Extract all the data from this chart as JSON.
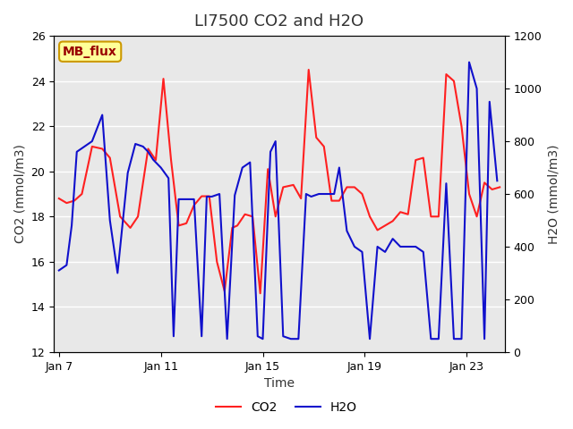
{
  "title": "LI7500 CO2 and H2O",
  "xlabel": "Time",
  "ylabel_left": "CO2 (mmol/m3)",
  "ylabel_right": "H2O (mmol/m3)",
  "ylim_left": [
    12,
    26
  ],
  "ylim_right": [
    0,
    1200
  ],
  "background_color": "#ffffff",
  "plot_bg_color": "#e8e8e8",
  "annotation_text": "MB_flux",
  "annotation_bg": "#ffff99",
  "annotation_border": "#cc9900",
  "annotation_text_color": "#990000",
  "co2_color": "#ff2020",
  "h2o_color": "#1010cc",
  "legend_co2": "CO2",
  "legend_h2o": "H2O",
  "co2_x": [
    7.0,
    7.3,
    7.6,
    7.9,
    8.3,
    8.7,
    9.0,
    9.4,
    9.8,
    10.1,
    10.5,
    10.8,
    11.1,
    11.4,
    11.7,
    12.0,
    12.3,
    12.6,
    12.9,
    13.2,
    13.5,
    13.8,
    14.0,
    14.3,
    14.6,
    14.9,
    15.2,
    15.5,
    15.8,
    16.2,
    16.5,
    16.8,
    17.1,
    17.4,
    17.7,
    18.0,
    18.3,
    18.6,
    18.9,
    19.2,
    19.5,
    19.8,
    20.1,
    20.4,
    20.7,
    21.0,
    21.3,
    21.6,
    21.9,
    22.2,
    22.5,
    22.8,
    23.1,
    23.4,
    23.7,
    24.0,
    24.3
  ],
  "co2_y": [
    18.8,
    18.6,
    18.7,
    19.0,
    21.1,
    21.0,
    20.6,
    18.0,
    17.5,
    18.0,
    21.0,
    20.5,
    24.1,
    20.5,
    17.6,
    17.7,
    18.5,
    18.9,
    18.9,
    16.0,
    14.7,
    17.5,
    17.6,
    18.1,
    18.0,
    14.6,
    20.1,
    18.0,
    19.3,
    19.4,
    18.8,
    24.5,
    21.5,
    21.1,
    18.7,
    18.7,
    19.3,
    19.3,
    19.0,
    18.0,
    17.4,
    17.6,
    17.8,
    18.2,
    18.1,
    20.5,
    20.6,
    18.0,
    18.0,
    24.3,
    24.0,
    22.0,
    19.0,
    18.0,
    19.5,
    19.2,
    19.3
  ],
  "h2o_x": [
    7.0,
    7.3,
    7.5,
    7.7,
    8.0,
    8.3,
    8.7,
    9.0,
    9.3,
    9.7,
    10.0,
    10.3,
    10.5,
    10.7,
    11.0,
    11.3,
    11.5,
    11.7,
    12.0,
    12.3,
    12.6,
    12.8,
    13.0,
    13.3,
    13.6,
    13.9,
    14.2,
    14.5,
    14.8,
    15.0,
    15.3,
    15.5,
    15.8,
    16.1,
    16.4,
    16.7,
    16.9,
    17.2,
    17.5,
    17.8,
    18.0,
    18.3,
    18.6,
    18.9,
    19.2,
    19.5,
    19.8,
    20.1,
    20.4,
    20.7,
    21.0,
    21.3,
    21.6,
    21.9,
    22.2,
    22.5,
    22.8,
    23.1,
    23.4,
    23.7,
    23.9,
    24.2
  ],
  "h2o_y": [
    310,
    330,
    480,
    760,
    780,
    800,
    900,
    500,
    300,
    680,
    790,
    780,
    760,
    730,
    700,
    660,
    60,
    580,
    580,
    580,
    60,
    590,
    590,
    600,
    50,
    595,
    700,
    720,
    60,
    50,
    760,
    800,
    60,
    50,
    50,
    600,
    590,
    600,
    600,
    600,
    700,
    460,
    400,
    380,
    50,
    400,
    380,
    430,
    400,
    400,
    400,
    380,
    50,
    50,
    640,
    50,
    50,
    1100,
    1000,
    50,
    950,
    650
  ],
  "xticks": [
    7,
    11,
    15,
    19,
    23
  ],
  "xtick_labels": [
    "Jan 7",
    "Jan 11",
    "Jan 15",
    "Jan 19",
    "Jan 23"
  ],
  "yticks_left": [
    12,
    14,
    16,
    18,
    20,
    22,
    24,
    26
  ],
  "yticks_right": [
    0,
    200,
    400,
    600,
    800,
    1000,
    1200
  ],
  "font_color": "#333333",
  "title_fontsize": 13,
  "axis_fontsize": 10,
  "tick_fontsize": 9,
  "linewidth": 1.5
}
